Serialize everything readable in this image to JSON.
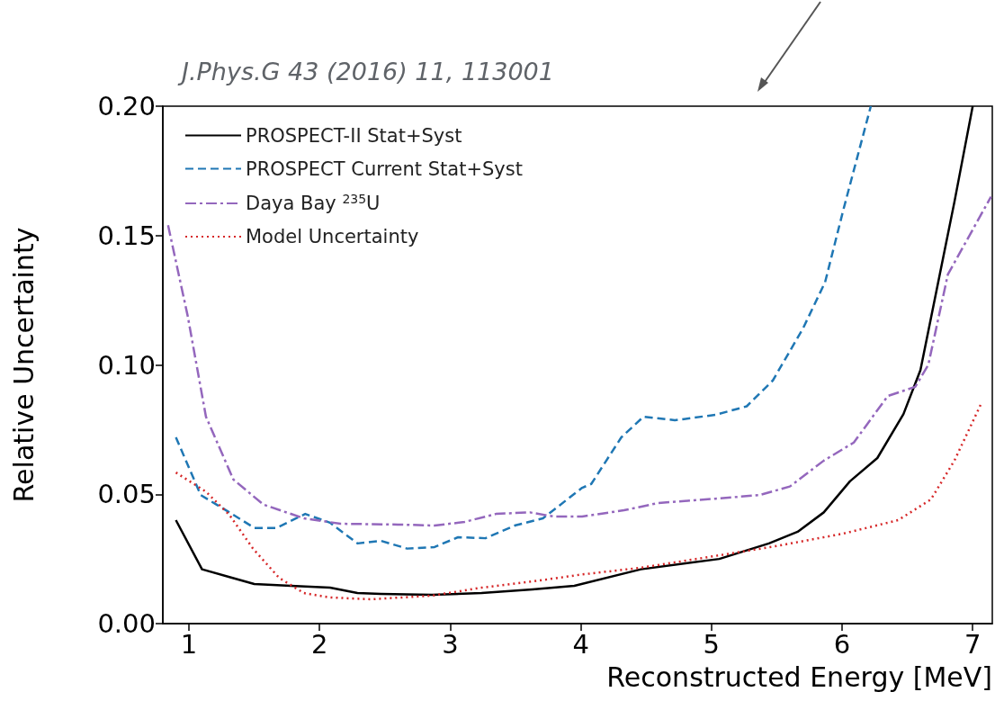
{
  "chart_data": {
    "type": "line",
    "xlabel": "Reconstructed Energy [MeV]",
    "ylabel": "Relative Uncertainty",
    "annotations": [
      "J.Phys.G 43 (2016) 11, 113001"
    ],
    "xlim": [
      0.8,
      7.15
    ],
    "xticks": [
      1,
      2,
      3,
      4,
      5,
      6,
      7
    ],
    "ylim": [
      0,
      0.2
    ],
    "yticks": [
      {
        "value": 0,
        "label": "0.00"
      },
      {
        "value": 0.05,
        "label": "0.05"
      },
      {
        "value": 0.1,
        "label": "0.10"
      },
      {
        "value": 0.15,
        "label": "0.15"
      },
      {
        "value": 0.2,
        "label": "0.20"
      }
    ],
    "grid": false,
    "legend": "top left",
    "marker": "none",
    "series": [
      {
        "name": "PROSPECT-II Stat+Syst",
        "color": "#000000",
        "line_style": "solid",
        "x": [
          0.9,
          1.1,
          1.31,
          1.5,
          1.78,
          2.08,
          2.29,
          2.47,
          2.86,
          3.24,
          3.63,
          3.95,
          4.46,
          5.06,
          5.44,
          5.66,
          5.86,
          6.06,
          6.27,
          6.47,
          6.6,
          6.68,
          6.86,
          7.0
        ],
        "values": [
          0.04,
          0.021,
          0.018,
          0.0153,
          0.0146,
          0.0139,
          0.0118,
          0.0115,
          0.0111,
          0.0118,
          0.0132,
          0.0146,
          0.021,
          0.025,
          0.031,
          0.0355,
          0.043,
          0.055,
          0.064,
          0.081,
          0.098,
          0.118,
          0.163,
          0.2
        ]
      },
      {
        "name": "PROSPECT Current Stat+Syst",
        "color": "#1f77b4",
        "line_style": "dashed",
        "x": [
          0.9,
          1.09,
          1.31,
          1.5,
          1.67,
          1.89,
          2.08,
          2.29,
          2.47,
          2.67,
          2.88,
          3.06,
          3.27,
          3.5,
          3.71,
          4.01,
          4.08,
          4.31,
          4.48,
          4.72,
          5.03,
          5.27,
          5.47,
          5.7,
          5.87,
          6.01,
          6.22
        ],
        "values": [
          0.072,
          0.0497,
          0.043,
          0.037,
          0.037,
          0.0424,
          0.039,
          0.031,
          0.032,
          0.029,
          0.0296,
          0.0334,
          0.033,
          0.038,
          0.0407,
          0.0525,
          0.054,
          0.072,
          0.08,
          0.0786,
          0.0807,
          0.084,
          0.094,
          0.114,
          0.132,
          0.16,
          0.2
        ]
      },
      {
        "name": "Daya Bay $^{235}$U",
        "color": "#9467bd",
        "line_style": "dashdot",
        "x": [
          0.84,
          0.99,
          1.13,
          1.34,
          1.57,
          1.88,
          2.16,
          2.6,
          2.88,
          3.11,
          3.35,
          3.61,
          3.79,
          4.01,
          4.33,
          4.59,
          5.03,
          5.37,
          5.6,
          5.86,
          6.09,
          6.35,
          6.56,
          6.66,
          6.81,
          7.14
        ],
        "values": [
          0.154,
          0.119,
          0.08,
          0.0557,
          0.046,
          0.0407,
          0.0386,
          0.0383,
          0.0379,
          0.0393,
          0.0424,
          0.043,
          0.0414,
          0.0414,
          0.0438,
          0.0466,
          0.0483,
          0.0497,
          0.053,
          0.063,
          0.07,
          0.088,
          0.0915,
          0.1,
          0.135,
          0.165
        ]
      },
      {
        "name": "Model Uncertainty",
        "color": "#d62728",
        "line_style": "dotted",
        "x": [
          0.9,
          1.13,
          1.31,
          1.49,
          1.69,
          1.88,
          2.08,
          2.39,
          2.86,
          3.24,
          3.63,
          4.01,
          4.46,
          5.11,
          5.5,
          6.01,
          6.43,
          6.68,
          6.86,
          7.06
        ],
        "values": [
          0.0584,
          0.051,
          0.042,
          0.029,
          0.0177,
          0.0118,
          0.0101,
          0.0094,
          0.0108,
          0.0139,
          0.0163,
          0.019,
          0.0216,
          0.0268,
          0.03,
          0.0348,
          0.04,
          0.048,
          0.063,
          0.0845
        ]
      }
    ]
  }
}
